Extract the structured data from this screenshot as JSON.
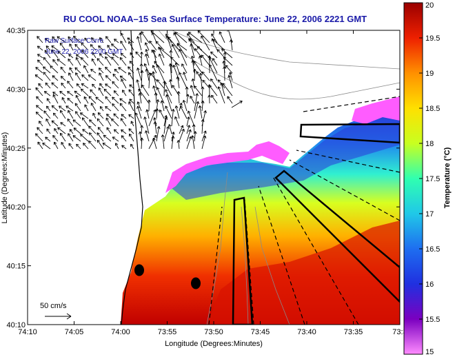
{
  "chart_data": {
    "type": "heatmap",
    "title": "RU COOL  NOAA–15  Sea Surface Temperature:  June 22, 2006 2221 GMT",
    "xlabel": "Longitude (Degrees:Minutes)",
    "ylabel": "Latitude (Degrees:Minutes)",
    "colorbar_label": "Temperature (°C)",
    "x_ticks": [
      "74:10",
      "74:05",
      "74:00",
      "73:55",
      "73:50",
      "73:45",
      "73:40",
      "73:35",
      "73:3"
    ],
    "y_ticks": [
      "40:35",
      "40:30",
      "40:25",
      "40:20",
      "40:15",
      "40:10"
    ],
    "colorbar_ticks": [
      "20",
      "19.5",
      "19",
      "18.5",
      "18",
      "17.5",
      "17",
      "16.5",
      "16",
      "15.5",
      "15"
    ],
    "vmin": 15,
    "vmax": 20,
    "inset_line1": "Raw Surface Curre",
    "inset_line2": "June 22, 2006 2200 GMT",
    "scale_label": "50 cm/s",
    "markers": [
      {
        "lon": "74:01",
        "lat": "40:14.7"
      },
      {
        "lon": "73:57.5",
        "lat": "40:13.4"
      }
    ]
  }
}
